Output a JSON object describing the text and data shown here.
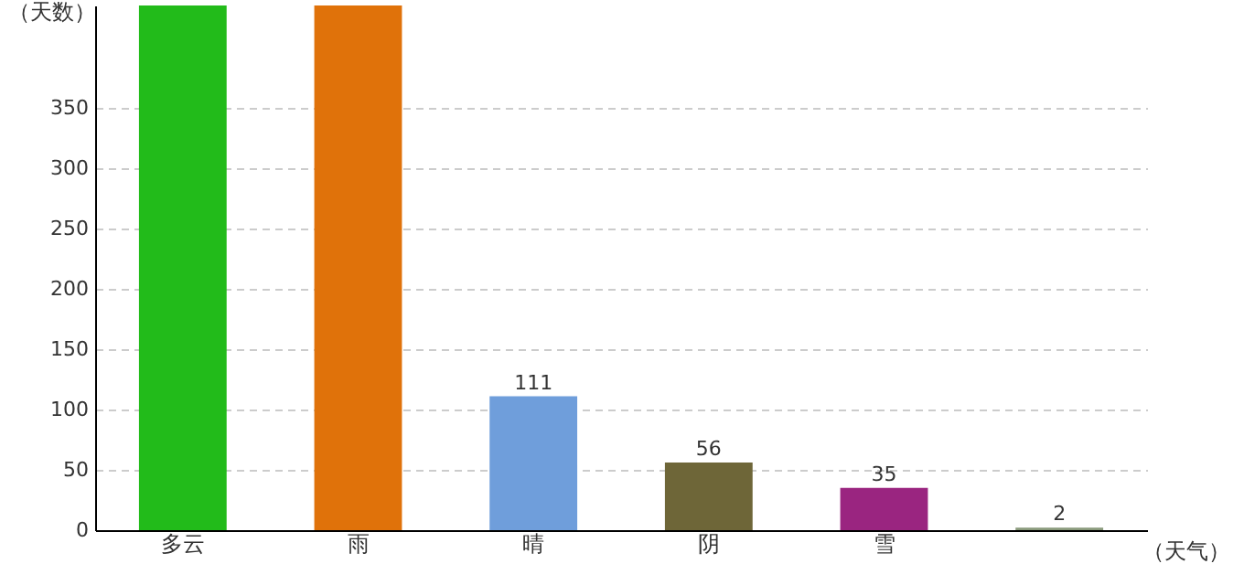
{
  "chart_data": {
    "type": "bar",
    "xlabel": "（天气）",
    "ylabel": "（天数）",
    "categories": [
      "多云",
      "雨",
      "晴",
      "阴",
      "雪",
      null
    ],
    "values": [
      435,
      435,
      111,
      56,
      35,
      2
    ],
    "value_labels": [
      null,
      null,
      "111",
      "56",
      "35",
      "2"
    ],
    "colors": [
      "#22bb1a",
      "#e0720a",
      "#6f9edb",
      "#6e6638",
      "#9a2580",
      "#8a9a7c"
    ],
    "ylim": [
      0,
      435
    ],
    "yticks": [
      0,
      50,
      100,
      150,
      200,
      250,
      300,
      350
    ],
    "grid": "y"
  }
}
